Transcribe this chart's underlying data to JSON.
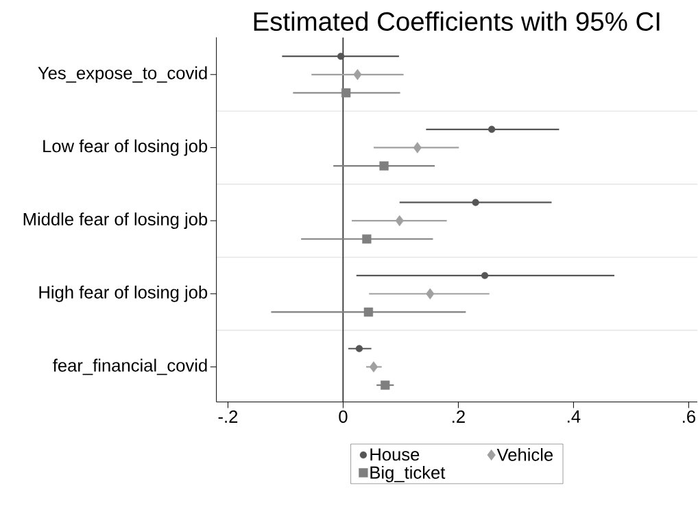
{
  "chart_data": {
    "type": "scatter",
    "orientation": "horizontal",
    "title": "Estimated Coefficients with 95% CI",
    "categories": [
      "Yes_expose_to_covid",
      "Low fear of losing job",
      "Middle fear of losing job",
      "High fear of losing job",
      "fear_financial_covid"
    ],
    "series": [
      {
        "name": "House",
        "color": "#555555",
        "marker": "circle",
        "values": [
          -0.004,
          0.258,
          0.23,
          0.246,
          0.028
        ],
        "errors": [
          [
            -0.106,
            0.097
          ],
          [
            0.144,
            0.375
          ],
          [
            0.098,
            0.362
          ],
          [
            0.023,
            0.471
          ],
          [
            0.009,
            0.049
          ]
        ]
      },
      {
        "name": "Vehicle",
        "color": "#a0a0a0",
        "marker": "diamond",
        "values": [
          0.025,
          0.129,
          0.098,
          0.151,
          0.053
        ],
        "errors": [
          [
            -0.055,
            0.105
          ],
          [
            0.053,
            0.201
          ],
          [
            0.015,
            0.18
          ],
          [
            0.045,
            0.254
          ],
          [
            0.04,
            0.067
          ]
        ]
      },
      {
        "name": "Big_ticket",
        "color": "#7f7f7f",
        "marker": "square",
        "values": [
          0.005,
          0.071,
          0.041,
          0.044,
          0.073
        ],
        "errors": [
          [
            -0.087,
            0.099
          ],
          [
            -0.017,
            0.159
          ],
          [
            -0.073,
            0.156
          ],
          [
            -0.125,
            0.213
          ],
          [
            0.058,
            0.088
          ]
        ]
      }
    ],
    "xlim": [
      -0.22,
      0.615
    ],
    "xticks": [
      {
        "value": -0.2,
        "label": "-.2"
      },
      0,
      {
        "value": 0.2,
        "label": ".2"
      },
      {
        "value": 0.4,
        "label": ".4"
      },
      {
        "value": 0.6,
        "label": ".6"
      }
    ],
    "ref_lines": [
      {
        "axis": "x",
        "value": 0,
        "color": "#333333"
      }
    ],
    "grid": "y",
    "legend": "bottom"
  }
}
